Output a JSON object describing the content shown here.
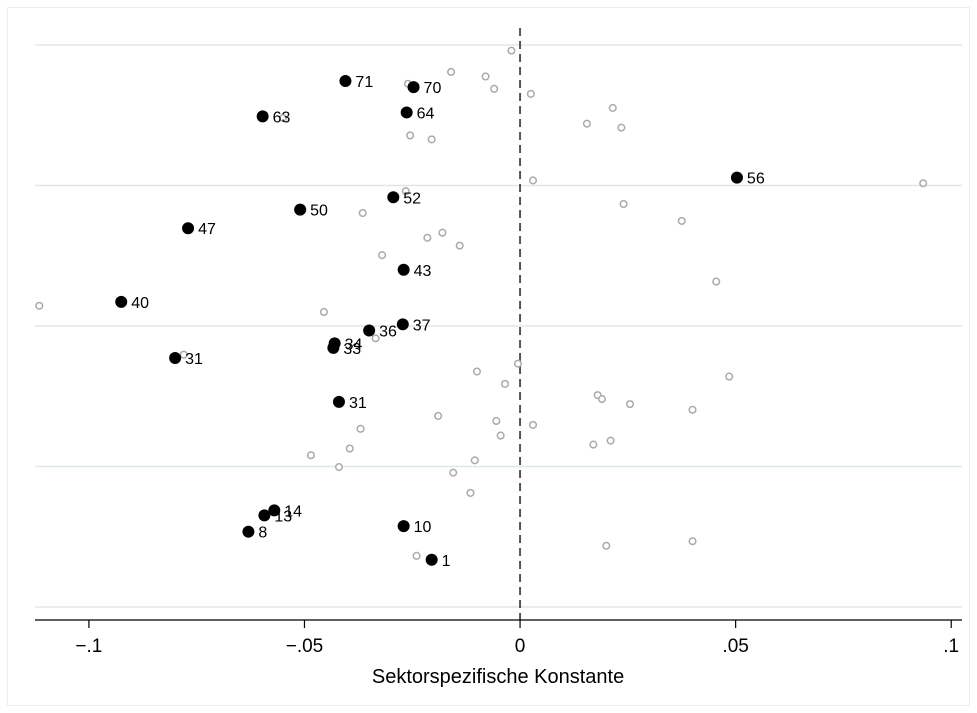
{
  "chart_data": {
    "type": "scatter",
    "title": "",
    "xlabel": "Sektorspezifische Konstante",
    "ylabel": "",
    "xlim": [
      -0.1125,
      0.1025
    ],
    "ylim": [
      0,
      100
    ],
    "x_ticks": [
      -0.1,
      -0.05,
      0,
      0.05,
      0.1
    ],
    "x_tick_labels": [
      "−.1",
      "−.05",
      "0",
      ".05",
      ".1"
    ],
    "reference_line": {
      "x": 0,
      "style": "dashed"
    },
    "gridlines": "horizontal",
    "colors": {
      "highlighted": "#000000",
      "other": "#aaaaaa",
      "grid": "#dde9e9"
    },
    "series": [
      {
        "marker": "filled-circle",
        "points": [
          {
            "x": -0.0405,
            "y": 93.6,
            "label": "71"
          },
          {
            "x": -0.0247,
            "y": 92.5,
            "label": "70"
          },
          {
            "x": -0.0597,
            "y": 87.3,
            "label": "63"
          },
          {
            "x": -0.0263,
            "y": 88.0,
            "label": "64"
          },
          {
            "x": 0.0503,
            "y": 76.4,
            "label": "56"
          },
          {
            "x": -0.051,
            "y": 70.7,
            "label": "50"
          },
          {
            "x": -0.0294,
            "y": 72.9,
            "label": "52"
          },
          {
            "x": -0.077,
            "y": 67.4,
            "label": "47"
          },
          {
            "x": -0.027,
            "y": 60.0,
            "label": "43"
          },
          {
            "x": -0.0925,
            "y": 54.3,
            "label": "40"
          },
          {
            "x": -0.035,
            "y": 49.2,
            "label": "36"
          },
          {
            "x": -0.0272,
            "y": 50.3,
            "label": "37"
          },
          {
            "x": -0.043,
            "y": 46.9,
            "label": "34"
          },
          {
            "x": -0.0433,
            "y": 46.1,
            "label": "33"
          },
          {
            "x": -0.08,
            "y": 44.3,
            "label": "31"
          },
          {
            "x": -0.042,
            "y": 36.5,
            "label": "31"
          },
          {
            "x": -0.057,
            "y": 17.2,
            "label": "14"
          },
          {
            "x": -0.0593,
            "y": 16.3,
            "label": "13"
          },
          {
            "x": -0.027,
            "y": 14.4,
            "label": "10"
          },
          {
            "x": -0.063,
            "y": 13.4,
            "label": "8"
          },
          {
            "x": -0.0205,
            "y": 8.4,
            "label": "1"
          }
        ]
      },
      {
        "marker": "hollow-circle",
        "points": [
          {
            "x": -0.002,
            "y": 99.0
          },
          {
            "x": -0.016,
            "y": 95.2
          },
          {
            "x": -0.008,
            "y": 94.4
          },
          {
            "x": -0.026,
            "y": 93.1
          },
          {
            "x": -0.006,
            "y": 92.2
          },
          {
            "x": 0.0025,
            "y": 91.3
          },
          {
            "x": 0.0215,
            "y": 88.8
          },
          {
            "x": -0.055,
            "y": 87.0
          },
          {
            "x": 0.0155,
            "y": 86.0
          },
          {
            "x": 0.0235,
            "y": 85.3
          },
          {
            "x": -0.0255,
            "y": 83.9
          },
          {
            "x": -0.0205,
            "y": 83.2
          },
          {
            "x": 0.003,
            "y": 75.9
          },
          {
            "x": 0.0935,
            "y": 75.4
          },
          {
            "x": -0.0265,
            "y": 74.0
          },
          {
            "x": 0.024,
            "y": 71.7
          },
          {
            "x": -0.0365,
            "y": 70.1
          },
          {
            "x": 0.0375,
            "y": 68.7
          },
          {
            "x": -0.018,
            "y": 66.6
          },
          {
            "x": -0.0215,
            "y": 65.7
          },
          {
            "x": -0.014,
            "y": 64.3
          },
          {
            "x": -0.032,
            "y": 62.6
          },
          {
            "x": 0.0455,
            "y": 57.9
          },
          {
            "x": -0.1115,
            "y": 53.6
          },
          {
            "x": -0.0455,
            "y": 52.5
          },
          {
            "x": -0.0335,
            "y": 47.8
          },
          {
            "x": -0.078,
            "y": 44.9
          },
          {
            "x": -0.0005,
            "y": 43.3
          },
          {
            "x": -0.01,
            "y": 41.9
          },
          {
            "x": 0.0485,
            "y": 41.0
          },
          {
            "x": -0.0035,
            "y": 39.7
          },
          {
            "x": 0.018,
            "y": 37.7
          },
          {
            "x": 0.019,
            "y": 37.0
          },
          {
            "x": 0.0255,
            "y": 36.1
          },
          {
            "x": 0.04,
            "y": 35.1
          },
          {
            "x": -0.019,
            "y": 34.0
          },
          {
            "x": -0.0055,
            "y": 33.1
          },
          {
            "x": 0.003,
            "y": 32.4
          },
          {
            "x": -0.037,
            "y": 31.7
          },
          {
            "x": -0.0045,
            "y": 30.5
          },
          {
            "x": 0.021,
            "y": 29.6
          },
          {
            "x": 0.017,
            "y": 28.9
          },
          {
            "x": -0.0395,
            "y": 28.2
          },
          {
            "x": -0.0485,
            "y": 27.0
          },
          {
            "x": -0.0105,
            "y": 26.1
          },
          {
            "x": -0.042,
            "y": 24.9
          },
          {
            "x": -0.0155,
            "y": 23.9
          },
          {
            "x": -0.0115,
            "y": 20.3
          },
          {
            "x": 0.04,
            "y": 11.7
          },
          {
            "x": 0.02,
            "y": 10.9
          },
          {
            "x": -0.024,
            "y": 9.1
          }
        ]
      }
    ]
  }
}
